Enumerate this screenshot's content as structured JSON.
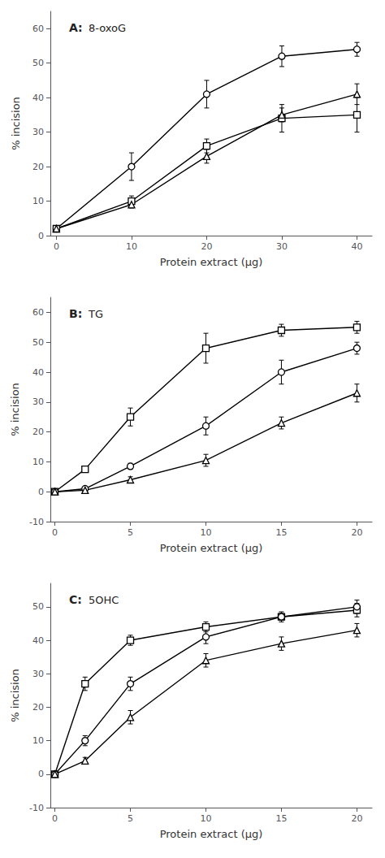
{
  "chart_data": [
    {
      "type": "line",
      "title": "A:",
      "subtitle": "8-oxoG",
      "xlabel": "Protein extract (μg)",
      "ylabel": "% incision",
      "x": [
        0,
        10,
        20,
        30,
        40
      ],
      "xlim": [
        -0.8,
        42
      ],
      "xticks": [
        0,
        10,
        20,
        30,
        40
      ],
      "ylim": [
        0,
        65
      ],
      "yticks": [
        0,
        10,
        20,
        30,
        40,
        50,
        60
      ],
      "grid": false,
      "series": [
        {
          "color": "#000000",
          "marker": "circle",
          "values": [
            2,
            20,
            41,
            52,
            54
          ],
          "yerr": [
            0.5,
            4,
            4,
            3,
            2
          ]
        },
        {
          "color": "#000000",
          "marker": "square",
          "values": [
            2,
            10,
            26,
            34,
            35
          ],
          "yerr": [
            0.5,
            1.5,
            2,
            4,
            5
          ]
        },
        {
          "color": "#000000",
          "marker": "triangle",
          "values": [
            2,
            9,
            23,
            35,
            41
          ],
          "yerr": [
            0.5,
            1,
            2,
            2,
            3
          ]
        }
      ]
    },
    {
      "type": "line",
      "title": "B:",
      "subtitle": "TG",
      "xlabel": "Protein extract (μg)",
      "ylabel": "% incision",
      "x": [
        0,
        2,
        5,
        10,
        15,
        20
      ],
      "xlim": [
        -0.3,
        21
      ],
      "xticks": [
        0,
        5,
        10,
        15,
        20
      ],
      "ylim": [
        -10,
        65
      ],
      "yticks": [
        -10,
        0,
        10,
        20,
        30,
        40,
        50,
        60
      ],
      "grid": false,
      "series": [
        {
          "color": "#000000",
          "marker": "square",
          "values": [
            0,
            7.5,
            25,
            48,
            54,
            55
          ],
          "yerr": [
            0.3,
            0.5,
            3,
            5,
            2,
            2
          ]
        },
        {
          "color": "#000000",
          "marker": "circle",
          "values": [
            0,
            1,
            8.5,
            22,
            40,
            48
          ],
          "yerr": [
            0.3,
            0.5,
            1,
            3,
            4,
            2
          ]
        },
        {
          "color": "#000000",
          "marker": "triangle",
          "values": [
            0,
            0.5,
            4,
            10.5,
            23,
            33
          ],
          "yerr": [
            0.3,
            0.5,
            1,
            2,
            2,
            3
          ]
        }
      ]
    },
    {
      "type": "line",
      "title": "C:",
      "subtitle": "5OHC",
      "xlabel": "Protein extract (μg)",
      "ylabel": "% incision",
      "x": [
        0,
        2,
        5,
        10,
        15,
        20
      ],
      "xlim": [
        -0.3,
        21
      ],
      "xticks": [
        0,
        5,
        10,
        15,
        20
      ],
      "ylim": [
        -10,
        57
      ],
      "yticks": [
        -10,
        0,
        10,
        20,
        30,
        40,
        50
      ],
      "grid": false,
      "series": [
        {
          "color": "#000000",
          "marker": "square",
          "values": [
            0,
            27,
            40,
            44,
            47,
            49
          ],
          "yerr": [
            0.3,
            2,
            1.5,
            1.5,
            1,
            2
          ]
        },
        {
          "color": "#000000",
          "marker": "circle",
          "values": [
            0,
            10,
            27,
            41,
            47,
            50
          ],
          "yerr": [
            0.3,
            1.5,
            2,
            2,
            1.5,
            2
          ]
        },
        {
          "color": "#000000",
          "marker": "triangle",
          "values": [
            0,
            4,
            17,
            34,
            39,
            43
          ],
          "yerr": [
            0.3,
            1,
            2,
            2,
            2,
            2
          ]
        }
      ]
    }
  ]
}
